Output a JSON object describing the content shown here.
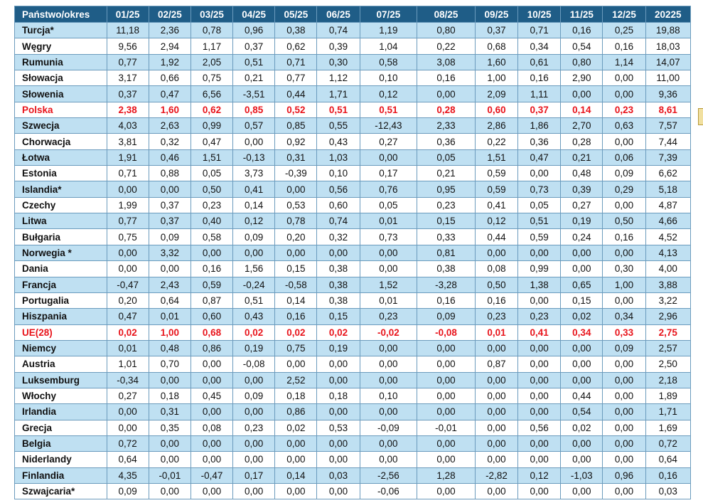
{
  "columns": [
    "Państwo/okres",
    "01/25",
    "02/25",
    "03/25",
    "04/25",
    "05/25",
    "06/25",
    "07/25",
    "08/25",
    "09/25",
    "10/25",
    "11/25",
    "12/25",
    "20225"
  ],
  "rows": [
    {
      "country": "Turcja*",
      "values": [
        "11,18",
        "2,36",
        "0,78",
        "0,96",
        "0,38",
        "0,74",
        "1,19",
        "0,80",
        "0,37",
        "0,71",
        "0,16",
        "0,25",
        "19,88"
      ]
    },
    {
      "country": "Węgry",
      "values": [
        "9,56",
        "2,94",
        "1,17",
        "0,37",
        "0,62",
        "0,39",
        "1,04",
        "0,22",
        "0,68",
        "0,34",
        "0,54",
        "0,16",
        "18,03"
      ]
    },
    {
      "country": "Rumunia",
      "values": [
        "0,77",
        "1,92",
        "2,05",
        "0,51",
        "0,71",
        "0,30",
        "0,58",
        "3,08",
        "1,60",
        "0,61",
        "0,80",
        "1,14",
        "14,07"
      ]
    },
    {
      "country": "Słowacja",
      "values": [
        "3,17",
        "0,66",
        "0,75",
        "0,21",
        "0,77",
        "1,12",
        "0,10",
        "0,16",
        "1,00",
        "0,16",
        "2,90",
        "0,00",
        "11,00"
      ]
    },
    {
      "country": "Słowenia",
      "values": [
        "0,37",
        "0,47",
        "6,56",
        "-3,51",
        "0,44",
        "1,71",
        "0,12",
        "0,00",
        "2,09",
        "1,11",
        "0,00",
        "0,00",
        "9,36"
      ]
    },
    {
      "country": "Polska",
      "highlight": true,
      "values": [
        "2,38",
        "1,60",
        "0,62",
        "0,85",
        "0,52",
        "0,51",
        "0,51",
        "0,28",
        "0,60",
        "0,37",
        "0,14",
        "0,23",
        "8,61"
      ]
    },
    {
      "country": "Szwecja",
      "values": [
        "4,03",
        "2,63",
        "0,99",
        "0,57",
        "0,85",
        "0,55",
        "-12,43",
        "2,33",
        "2,86",
        "1,86",
        "2,70",
        "0,63",
        "7,57"
      ]
    },
    {
      "country": "Chorwacja",
      "values": [
        "3,81",
        "0,32",
        "0,47",
        "0,00",
        "0,92",
        "0,43",
        "0,27",
        "0,36",
        "0,22",
        "0,36",
        "0,28",
        "0,00",
        "7,44"
      ]
    },
    {
      "country": "Łotwa",
      "values": [
        "1,91",
        "0,46",
        "1,51",
        "-0,13",
        "0,31",
        "1,03",
        "0,00",
        "0,05",
        "1,51",
        "0,47",
        "0,21",
        "0,06",
        "7,39"
      ]
    },
    {
      "country": "Estonia",
      "values": [
        "0,71",
        "0,88",
        "0,05",
        "3,73",
        "-0,39",
        "0,10",
        "0,17",
        "0,21",
        "0,59",
        "0,00",
        "0,48",
        "0,09",
        "6,62"
      ]
    },
    {
      "country": "Islandia*",
      "values": [
        "0,00",
        "0,00",
        "0,50",
        "0,41",
        "0,00",
        "0,56",
        "0,76",
        "0,95",
        "0,59",
        "0,73",
        "0,39",
        "0,29",
        "5,18"
      ]
    },
    {
      "country": "Czechy",
      "values": [
        "1,99",
        "0,37",
        "0,23",
        "0,14",
        "0,53",
        "0,60",
        "0,05",
        "0,23",
        "0,41",
        "0,05",
        "0,27",
        "0,00",
        "4,87"
      ]
    },
    {
      "country": "Litwa",
      "values": [
        "0,77",
        "0,37",
        "0,40",
        "0,12",
        "0,78",
        "0,74",
        "0,01",
        "0,15",
        "0,12",
        "0,51",
        "0,19",
        "0,50",
        "4,66"
      ]
    },
    {
      "country": "Bułgaria",
      "values": [
        "0,75",
        "0,09",
        "0,58",
        "0,09",
        "0,20",
        "0,32",
        "0,73",
        "0,33",
        "0,44",
        "0,59",
        "0,24",
        "0,16",
        "4,52"
      ]
    },
    {
      "country": "Norwegia *",
      "values": [
        "0,00",
        "3,32",
        "0,00",
        "0,00",
        "0,00",
        "0,00",
        "0,00",
        "0,81",
        "0,00",
        "0,00",
        "0,00",
        "0,00",
        "4,13"
      ]
    },
    {
      "country": "Dania",
      "values": [
        "0,00",
        "0,00",
        "0,16",
        "1,56",
        "0,15",
        "0,38",
        "0,00",
        "0,38",
        "0,08",
        "0,99",
        "0,00",
        "0,30",
        "4,00"
      ]
    },
    {
      "country": "Francja",
      "values": [
        "-0,47",
        "2,43",
        "0,59",
        "-0,24",
        "-0,58",
        "0,38",
        "1,52",
        "-3,28",
        "0,50",
        "1,38",
        "0,65",
        "1,00",
        "3,88"
      ]
    },
    {
      "country": "Portugalia",
      "values": [
        "0,20",
        "0,64",
        "0,87",
        "0,51",
        "0,14",
        "0,38",
        "0,01",
        "0,16",
        "0,16",
        "0,00",
        "0,15",
        "0,00",
        "3,22"
      ]
    },
    {
      "country": "Hiszpania",
      "values": [
        "0,47",
        "0,01",
        "0,60",
        "0,43",
        "0,16",
        "0,15",
        "0,23",
        "0,09",
        "0,23",
        "0,23",
        "0,02",
        "0,34",
        "2,96"
      ]
    },
    {
      "country": "UE(28)",
      "highlight": true,
      "values": [
        "0,02",
        "1,00",
        "0,68",
        "0,02",
        "0,02",
        "0,02",
        "-0,02",
        "-0,08",
        "0,01",
        "0,41",
        "0,34",
        "0,33",
        "2,75"
      ]
    },
    {
      "country": "Niemcy",
      "values": [
        "0,01",
        "0,48",
        "0,86",
        "0,19",
        "0,75",
        "0,19",
        "0,00",
        "0,00",
        "0,00",
        "0,00",
        "0,00",
        "0,09",
        "2,57"
      ]
    },
    {
      "country": "Austria",
      "values": [
        "1,01",
        "0,70",
        "0,00",
        "-0,08",
        "0,00",
        "0,00",
        "0,00",
        "0,00",
        "0,87",
        "0,00",
        "0,00",
        "0,00",
        "2,50"
      ]
    },
    {
      "country": "Luksemburg",
      "values": [
        "-0,34",
        "0,00",
        "0,00",
        "0,00",
        "2,52",
        "0,00",
        "0,00",
        "0,00",
        "0,00",
        "0,00",
        "0,00",
        "0,00",
        "2,18"
      ]
    },
    {
      "country": "Włochy",
      "values": [
        "0,27",
        "0,18",
        "0,45",
        "0,09",
        "0,18",
        "0,18",
        "0,10",
        "0,00",
        "0,00",
        "0,00",
        "0,44",
        "0,00",
        "1,89"
      ]
    },
    {
      "country": "Irlandia",
      "values": [
        "0,00",
        "0,31",
        "0,00",
        "0,00",
        "0,86",
        "0,00",
        "0,00",
        "0,00",
        "0,00",
        "0,00",
        "0,54",
        "0,00",
        "1,71"
      ]
    },
    {
      "country": "Grecja",
      "values": [
        "0,00",
        "0,35",
        "0,08",
        "0,23",
        "0,02",
        "0,53",
        "-0,09",
        "-0,01",
        "0,00",
        "0,56",
        "0,02",
        "0,00",
        "1,69"
      ]
    },
    {
      "country": "Belgia",
      "values": [
        "0,72",
        "0,00",
        "0,00",
        "0,00",
        "0,00",
        "0,00",
        "0,00",
        "0,00",
        "0,00",
        "0,00",
        "0,00",
        "0,00",
        "0,72"
      ]
    },
    {
      "country": "Niderlandy",
      "values": [
        "0,64",
        "0,00",
        "0,00",
        "0,00",
        "0,00",
        "0,00",
        "0,00",
        "0,00",
        "0,00",
        "0,00",
        "0,00",
        "0,00",
        "0,64"
      ]
    },
    {
      "country": "Finlandia",
      "values": [
        "4,35",
        "-0,01",
        "-0,47",
        "0,17",
        "0,14",
        "0,03",
        "-2,56",
        "1,28",
        "-2,82",
        "0,12",
        "-1,03",
        "0,96",
        "0,16"
      ]
    },
    {
      "country": "Szwajcaria*",
      "values": [
        "0,09",
        "0,00",
        "0,00",
        "0,00",
        "0,00",
        "0,00",
        "-0,06",
        "0,00",
        "0,00",
        "0,00",
        "0,00",
        "0,00",
        "0,03"
      ]
    }
  ],
  "colors": {
    "header_bg": "#1f5d87",
    "band_row_bg": "#bfe0f2",
    "highlight_text": "#e8141b"
  }
}
